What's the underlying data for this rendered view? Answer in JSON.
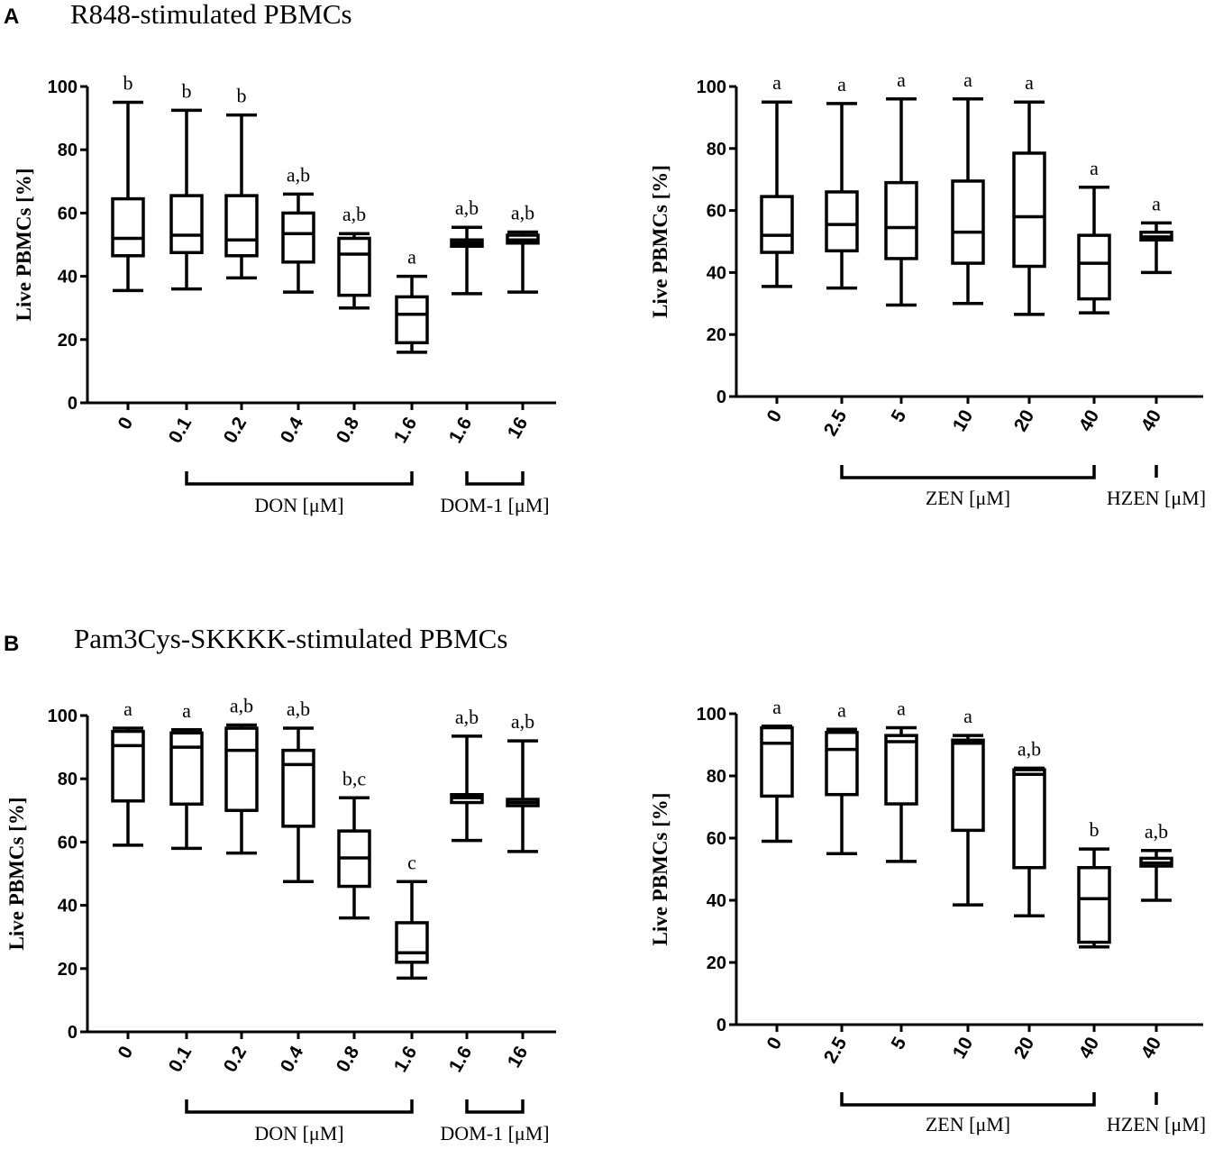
{
  "panels": [
    {
      "letter": "A",
      "title": "R848-stimulated PBMCs"
    },
    {
      "letter": "B",
      "title": "Pam3Cys-SKKKK-stimulated PBMCs"
    }
  ],
  "chart_data": [
    {
      "type": "box",
      "panel": "A",
      "position": "left",
      "ylabel": "Live PBMCs [%]",
      "ylim": [
        0,
        100
      ],
      "yticks": [
        0,
        20,
        40,
        60,
        80,
        100
      ],
      "categories": [
        "0",
        "0.1",
        "0.2",
        "0.4",
        "0.8",
        "1.6",
        "1.6",
        "16"
      ],
      "groups": [
        {
          "label": "DON [μM]",
          "from": 1,
          "to": 5
        },
        {
          "label": "DOM-1 [μM]",
          "from": 6,
          "to": 7
        }
      ],
      "boxes": [
        {
          "min": 35.5,
          "q1": 46.5,
          "median": 52,
          "q3": 64.5,
          "max": 95,
          "sig": "b"
        },
        {
          "min": 36,
          "q1": 47.5,
          "median": 53,
          "q3": 65.5,
          "max": 92.5,
          "sig": "b"
        },
        {
          "min": 39.5,
          "q1": 46.5,
          "median": 51.5,
          "q3": 65.5,
          "max": 91,
          "sig": "b"
        },
        {
          "min": 35,
          "q1": 44.5,
          "median": 53.5,
          "q3": 60,
          "max": 66,
          "sig": "a,b"
        },
        {
          "min": 30,
          "q1": 34,
          "median": 47,
          "q3": 52,
          "max": 53.5,
          "sig": "a,b"
        },
        {
          "min": 16,
          "q1": 19,
          "median": 28,
          "q3": 33.5,
          "max": 40,
          "sig": "a"
        },
        {
          "min": 34.5,
          "q1": 49.5,
          "median": 50.5,
          "q3": 51.5,
          "max": 55.5,
          "sig": "a,b"
        },
        {
          "min": 35,
          "q1": 50.5,
          "median": 51.5,
          "q3": 53,
          "max": 54,
          "sig": "a,b"
        }
      ]
    },
    {
      "type": "box",
      "panel": "A",
      "position": "right",
      "ylabel": "Live PBMCs [%]",
      "ylim": [
        0,
        100
      ],
      "yticks": [
        0,
        20,
        40,
        60,
        80,
        100
      ],
      "categories": [
        "0",
        "2.5",
        "5",
        "10",
        "20",
        "40",
        "40"
      ],
      "groups": [
        {
          "label": "ZEN [μM]",
          "from": 1,
          "to": 5
        },
        {
          "label": "HZEN [μM]",
          "from": 6,
          "to": 6
        }
      ],
      "boxes": [
        {
          "min": 35.5,
          "q1": 46.5,
          "median": 52,
          "q3": 64.5,
          "max": 95,
          "sig": "a"
        },
        {
          "min": 35,
          "q1": 47,
          "median": 55.5,
          "q3": 66,
          "max": 94.5,
          "sig": "a"
        },
        {
          "min": 29.5,
          "q1": 44.5,
          "median": 54.5,
          "q3": 69,
          "max": 96,
          "sig": "a"
        },
        {
          "min": 30,
          "q1": 43,
          "median": 53,
          "q3": 69.5,
          "max": 96,
          "sig": "a"
        },
        {
          "min": 26.5,
          "q1": 42,
          "median": 58,
          "q3": 78.5,
          "max": 95,
          "sig": "a"
        },
        {
          "min": 27,
          "q1": 31.5,
          "median": 43,
          "q3": 52,
          "max": 67.5,
          "sig": "a"
        },
        {
          "min": 40,
          "q1": 50.5,
          "median": 51.5,
          "q3": 53,
          "max": 56,
          "sig": "a"
        }
      ]
    },
    {
      "type": "box",
      "panel": "B",
      "position": "left",
      "ylabel": "Live PBMCs [%]",
      "ylim": [
        0,
        100
      ],
      "yticks": [
        0,
        20,
        40,
        60,
        80,
        100
      ],
      "categories": [
        "0",
        "0.1",
        "0.2",
        "0.4",
        "0.8",
        "1.6",
        "1.6",
        "16"
      ],
      "groups": [
        {
          "label": "DON [μM]",
          "from": 1,
          "to": 5
        },
        {
          "label": "DOM-1 [μM]",
          "from": 6,
          "to": 7
        }
      ],
      "boxes": [
        {
          "min": 59,
          "q1": 73,
          "median": 90.5,
          "q3": 95,
          "max": 96,
          "sig": "a"
        },
        {
          "min": 58,
          "q1": 72,
          "median": 90,
          "q3": 94.5,
          "max": 95.5,
          "sig": "a"
        },
        {
          "min": 56.5,
          "q1": 70,
          "median": 89,
          "q3": 96,
          "max": 97,
          "sig": "a,b"
        },
        {
          "min": 47.5,
          "q1": 65,
          "median": 84.5,
          "q3": 89,
          "max": 96,
          "sig": "a,b"
        },
        {
          "min": 36,
          "q1": 46,
          "median": 55,
          "q3": 63.5,
          "max": 74,
          "sig": "b,c"
        },
        {
          "min": 17,
          "q1": 22,
          "median": 25,
          "q3": 34.5,
          "max": 47.5,
          "sig": "c"
        },
        {
          "min": 60.5,
          "q1": 72.5,
          "median": 74,
          "q3": 75,
          "max": 93.5,
          "sig": "a,b"
        },
        {
          "min": 57,
          "q1": 71.5,
          "median": 72.5,
          "q3": 73.5,
          "max": 92,
          "sig": "a,b"
        }
      ]
    },
    {
      "type": "box",
      "panel": "B",
      "position": "right",
      "ylabel": "Live PBMCs [%]",
      "ylim": [
        0,
        100
      ],
      "yticks": [
        0,
        20,
        40,
        60,
        80,
        100
      ],
      "categories": [
        "0",
        "2.5",
        "5",
        "10",
        "20",
        "40",
        "40"
      ],
      "groups": [
        {
          "label": "ZEN [μM]",
          "from": 1,
          "to": 5
        },
        {
          "label": "HZEN [μM]",
          "from": 6,
          "to": 6
        }
      ],
      "boxes": [
        {
          "min": 59,
          "q1": 73.5,
          "median": 90.5,
          "q3": 95.5,
          "max": 96,
          "sig": "a"
        },
        {
          "min": 55,
          "q1": 74,
          "median": 88.5,
          "q3": 94,
          "max": 95,
          "sig": "a"
        },
        {
          "min": 52.5,
          "q1": 71,
          "median": 91,
          "q3": 93,
          "max": 95.5,
          "sig": "a"
        },
        {
          "min": 38.5,
          "q1": 62.5,
          "median": 90.5,
          "q3": 91.5,
          "max": 93,
          "sig": "a"
        },
        {
          "min": 35,
          "q1": 50.5,
          "median": 80.5,
          "q3": 82,
          "max": 82.5,
          "sig": "a,b"
        },
        {
          "min": 25,
          "q1": 26.5,
          "median": 40.5,
          "q3": 50.5,
          "max": 56.5,
          "sig": "b"
        },
        {
          "min": 40,
          "q1": 51,
          "median": 52,
          "q3": 53.5,
          "max": 56,
          "sig": "a,b"
        }
      ]
    }
  ]
}
